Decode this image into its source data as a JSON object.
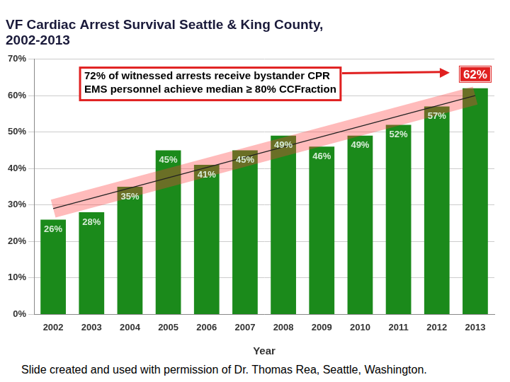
{
  "chart_data": {
    "type": "bar",
    "title": [
      "VF Cardiac Arrest Survival Seattle & King County,",
      "2002-2013"
    ],
    "annotation": [
      "72% of witnessed arrests receive bystander CPR",
      "EMS personnel achieve median ≥ 80% CCFraction"
    ],
    "x_label": "Year",
    "footnote": "Slide created and used with permission of Dr. Thomas Rea, Seattle, Washington.",
    "categories": [
      "2002",
      "2003",
      "2004",
      "2005",
      "2006",
      "2007",
      "2008",
      "2009",
      "2010",
      "2011",
      "2012",
      "2013"
    ],
    "values": [
      26,
      28,
      35,
      45,
      41,
      45,
      49,
      46,
      49,
      52,
      57,
      62
    ],
    "value_labels": [
      "26%",
      "28%",
      "35%",
      "45%",
      "41%",
      "45%",
      "49%",
      "46%",
      "49%",
      "52%",
      "57%",
      "62%"
    ],
    "trend": {
      "start": 29,
      "end": 60
    },
    "color": "#1b8a1b",
    "ylim": [
      0,
      70
    ],
    "yticks": [
      {
        "value": 0,
        "label": "0%"
      },
      {
        "value": 10,
        "label": "10%"
      },
      {
        "value": 20,
        "label": "20%"
      },
      {
        "value": 30,
        "label": "30%"
      },
      {
        "value": 40,
        "label": "40%"
      },
      {
        "value": 50,
        "label": "50%"
      },
      {
        "value": 60,
        "label": "60%"
      },
      {
        "value": 70,
        "label": "70%"
      }
    ],
    "grid": true,
    "data_labels": true
  }
}
